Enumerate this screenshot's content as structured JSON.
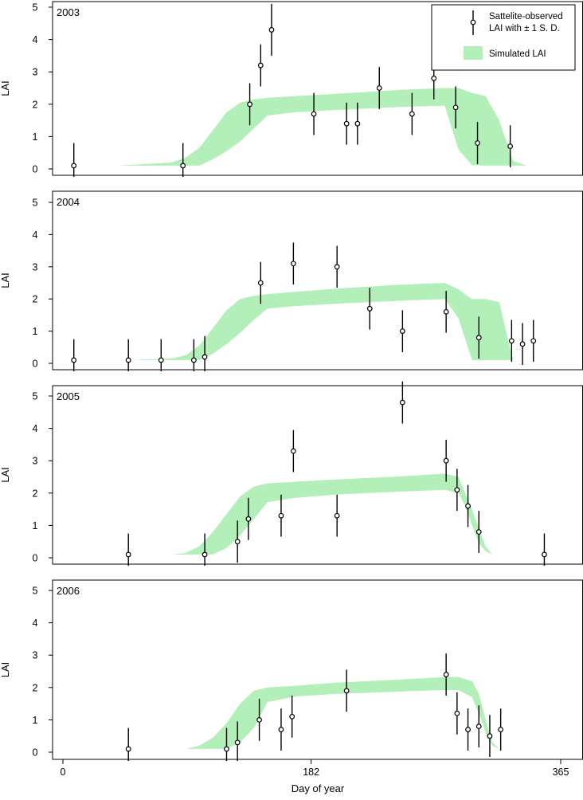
{
  "figure": {
    "xlabel": "Day of year",
    "xticks": [
      {
        "value": 0,
        "label": "0"
      },
      {
        "value": 182,
        "label": "182"
      },
      {
        "value": 365,
        "label": "365"
      }
    ],
    "legend": {
      "placement": "top-right",
      "observed_label_line1": "Sattelite-observed",
      "observed_label_line2": "LAI with ± 1   S. D.",
      "simulated_label": "Simulated LAI",
      "band_color": "#b3efb8"
    }
  },
  "chart_data": [
    {
      "type": "scatter",
      "panel_label": "2003",
      "ylabel": "LAI",
      "yticks": [
        0,
        1,
        2,
        3,
        4,
        5
      ],
      "ylim": [
        0,
        5
      ],
      "xlim": [
        0,
        365
      ],
      "observed": [
        {
          "x": 8,
          "y": 0.1,
          "sd": 0.7
        },
        {
          "x": 88,
          "y": 0.1,
          "sd": 0.7
        },
        {
          "x": 137,
          "y": 2.0,
          "sd": 0.65
        },
        {
          "x": 145,
          "y": 3.2,
          "sd": 0.65
        },
        {
          "x": 153,
          "y": 4.3,
          "sd": 0.8
        },
        {
          "x": 184,
          "y": 1.7,
          "sd": 0.65
        },
        {
          "x": 208,
          "y": 1.4,
          "sd": 0.65
        },
        {
          "x": 216,
          "y": 1.4,
          "sd": 0.65
        },
        {
          "x": 232,
          "y": 2.5,
          "sd": 0.65
        },
        {
          "x": 256,
          "y": 1.7,
          "sd": 0.65
        },
        {
          "x": 272,
          "y": 2.8,
          "sd": 0.65
        },
        {
          "x": 288,
          "y": 1.9,
          "sd": 0.65
        },
        {
          "x": 304,
          "y": 0.8,
          "sd": 0.65
        },
        {
          "x": 328,
          "y": 0.7,
          "sd": 0.65
        }
      ],
      "simulated_band": {
        "x": [
          0,
          40,
          60,
          80,
          90,
          100,
          110,
          120,
          130,
          140,
          150,
          170,
          200,
          250,
          280,
          290,
          300,
          310,
          320,
          330,
          340,
          360
        ],
        "upper": [
          0.1,
          0.1,
          0.15,
          0.2,
          0.35,
          0.65,
          1.2,
          1.75,
          2.05,
          2.15,
          2.2,
          2.25,
          2.32,
          2.45,
          2.5,
          2.5,
          2.35,
          2.25,
          1.5,
          0.25,
          0.1,
          0.1
        ],
        "lower": [
          0.1,
          0.1,
          0.1,
          0.1,
          0.1,
          0.1,
          0.3,
          0.55,
          0.85,
          1.25,
          1.65,
          1.75,
          1.82,
          1.92,
          1.95,
          0.6,
          0.12,
          0.1,
          0.1,
          0.1,
          0.1,
          0.1
        ]
      }
    },
    {
      "type": "scatter",
      "panel_label": "2004",
      "ylabel": "LAI",
      "yticks": [
        0,
        1,
        2,
        3,
        4,
        5
      ],
      "ylim": [
        0,
        5
      ],
      "xlim": [
        0,
        365
      ],
      "observed": [
        {
          "x": 8,
          "y": 0.1,
          "sd": 0.65
        },
        {
          "x": 48,
          "y": 0.1,
          "sd": 0.65
        },
        {
          "x": 72,
          "y": 0.1,
          "sd": 0.65
        },
        {
          "x": 96,
          "y": 0.1,
          "sd": 0.65
        },
        {
          "x": 104,
          "y": 0.2,
          "sd": 0.65
        },
        {
          "x": 145,
          "y": 2.5,
          "sd": 0.65
        },
        {
          "x": 169,
          "y": 3.1,
          "sd": 0.65
        },
        {
          "x": 201,
          "y": 3.0,
          "sd": 0.65
        },
        {
          "x": 225,
          "y": 1.7,
          "sd": 0.65
        },
        {
          "x": 249,
          "y": 1.0,
          "sd": 0.65
        },
        {
          "x": 281,
          "y": 1.6,
          "sd": 0.65
        },
        {
          "x": 305,
          "y": 0.8,
          "sd": 0.65
        },
        {
          "x": 329,
          "y": 0.7,
          "sd": 0.65
        },
        {
          "x": 337,
          "y": 0.6,
          "sd": 0.65
        },
        {
          "x": 345,
          "y": 0.7,
          "sd": 0.65
        }
      ],
      "simulated_band": {
        "x": [
          0,
          50,
          80,
          90,
          100,
          110,
          120,
          130,
          140,
          150,
          170,
          200,
          250,
          280,
          290,
          300,
          310,
          320,
          325,
          330,
          360
        ],
        "upper": [
          0.1,
          0.1,
          0.15,
          0.25,
          0.55,
          1.1,
          1.65,
          2.0,
          2.1,
          2.15,
          2.22,
          2.32,
          2.45,
          2.5,
          2.3,
          2.0,
          2.0,
          1.9,
          1.0,
          0.1,
          0.1
        ],
        "lower": [
          0.1,
          0.1,
          0.1,
          0.1,
          0.1,
          0.3,
          0.6,
          0.95,
          1.35,
          1.7,
          1.78,
          1.85,
          1.95,
          2.0,
          1.4,
          0.1,
          0.1,
          0.1,
          0.1,
          0.1,
          0.1
        ]
      }
    },
    {
      "type": "scatter",
      "panel_label": "2005",
      "ylabel": "LAI",
      "yticks": [
        0,
        1,
        2,
        3,
        4,
        5
      ],
      "ylim": [
        0,
        5
      ],
      "xlim": [
        0,
        365
      ],
      "observed": [
        {
          "x": 48,
          "y": 0.1,
          "sd": 0.65
        },
        {
          "x": 104,
          "y": 0.1,
          "sd": 0.65
        },
        {
          "x": 128,
          "y": 0.5,
          "sd": 0.65
        },
        {
          "x": 136,
          "y": 1.2,
          "sd": 0.65
        },
        {
          "x": 160,
          "y": 1.3,
          "sd": 0.65
        },
        {
          "x": 169,
          "y": 3.3,
          "sd": 0.65
        },
        {
          "x": 201,
          "y": 1.3,
          "sd": 0.65
        },
        {
          "x": 249,
          "y": 4.8,
          "sd": 0.65
        },
        {
          "x": 281,
          "y": 3.0,
          "sd": 0.65
        },
        {
          "x": 289,
          "y": 2.1,
          "sd": 0.65
        },
        {
          "x": 297,
          "y": 1.6,
          "sd": 0.65
        },
        {
          "x": 305,
          "y": 0.8,
          "sd": 0.65
        },
        {
          "x": 353,
          "y": 0.1,
          "sd": 0.65
        }
      ],
      "simulated_band": {
        "x": [
          0,
          80,
          90,
          100,
          110,
          120,
          130,
          140,
          150,
          170,
          200,
          250,
          280,
          290,
          295,
          300,
          305,
          310,
          315,
          320,
          360
        ],
        "upper": [
          0.1,
          0.1,
          0.15,
          0.35,
          0.8,
          1.35,
          1.9,
          2.2,
          2.3,
          2.35,
          2.42,
          2.52,
          2.6,
          2.5,
          2.0,
          1.5,
          0.9,
          0.35,
          0.1,
          0.1,
          0.1
        ],
        "lower": [
          0.1,
          0.1,
          0.1,
          0.1,
          0.1,
          0.3,
          0.7,
          1.2,
          1.72,
          1.85,
          1.95,
          2.05,
          2.1,
          2.0,
          1.6,
          1.0,
          0.45,
          0.2,
          0.1,
          0.1,
          0.1
        ]
      }
    },
    {
      "type": "scatter",
      "panel_label": "2006",
      "ylabel": "LAI",
      "yticks": [
        0,
        1,
        2,
        3,
        4,
        5
      ],
      "ylim": [
        0,
        5
      ],
      "xlim": [
        0,
        365
      ],
      "observed": [
        {
          "x": 48,
          "y": 0.1,
          "sd": 0.65
        },
        {
          "x": 120,
          "y": 0.1,
          "sd": 0.65
        },
        {
          "x": 128,
          "y": 0.3,
          "sd": 0.65
        },
        {
          "x": 144,
          "y": 1.0,
          "sd": 0.65
        },
        {
          "x": 160,
          "y": 0.7,
          "sd": 0.65
        },
        {
          "x": 168,
          "y": 1.1,
          "sd": 0.65
        },
        {
          "x": 208,
          "y": 1.9,
          "sd": 0.65
        },
        {
          "x": 281,
          "y": 2.4,
          "sd": 0.65
        },
        {
          "x": 289,
          "y": 1.2,
          "sd": 0.65
        },
        {
          "x": 297,
          "y": 0.7,
          "sd": 0.65
        },
        {
          "x": 305,
          "y": 0.8,
          "sd": 0.65
        },
        {
          "x": 313,
          "y": 0.5,
          "sd": 0.65
        },
        {
          "x": 321,
          "y": 0.7,
          "sd": 0.65
        }
      ],
      "simulated_band": {
        "x": [
          0,
          90,
          100,
          110,
          120,
          130,
          140,
          150,
          170,
          200,
          250,
          280,
          290,
          300,
          305,
          310,
          315,
          320,
          360
        ],
        "upper": [
          0.1,
          0.1,
          0.2,
          0.45,
          0.9,
          1.5,
          1.9,
          2.0,
          2.05,
          2.15,
          2.25,
          2.32,
          2.32,
          2.2,
          1.8,
          1.0,
          0.3,
          0.1,
          0.1
        ],
        "lower": [
          0.1,
          0.1,
          0.1,
          0.1,
          0.1,
          0.3,
          0.75,
          1.55,
          1.72,
          1.8,
          1.88,
          1.92,
          1.92,
          1.7,
          1.2,
          0.6,
          0.2,
          0.1,
          0.1
        ]
      }
    }
  ]
}
